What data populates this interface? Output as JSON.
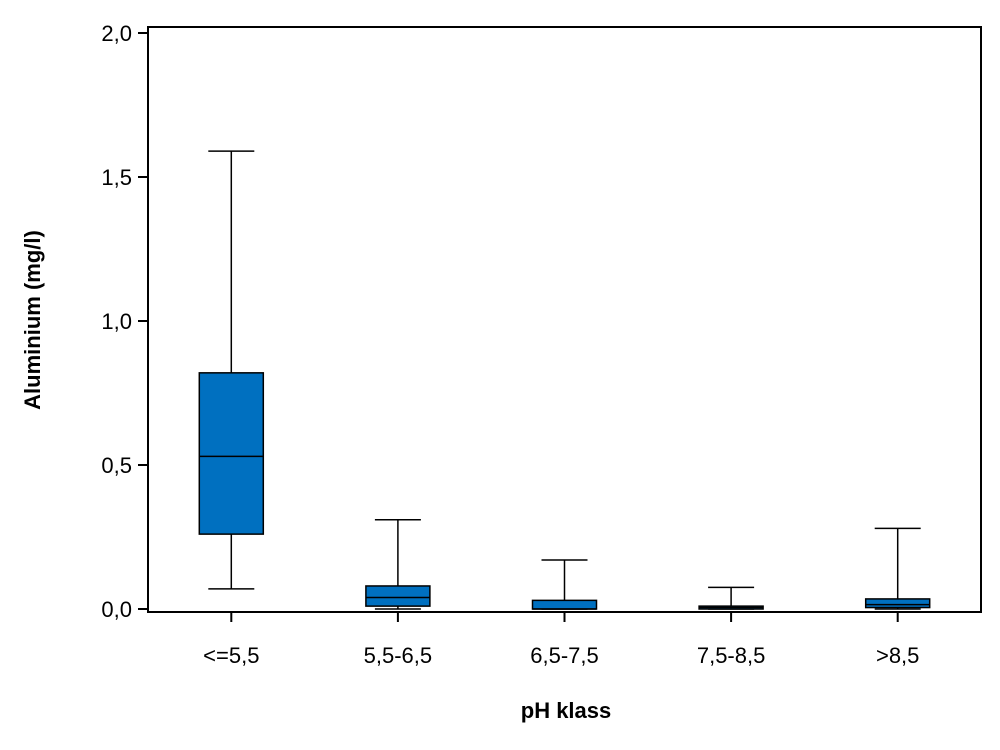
{
  "chart_data": {
    "type": "boxplot",
    "xlabel": "pH klass",
    "ylabel": "Aluminium (mg/l)",
    "ylim": [
      0,
      2.0
    ],
    "yticks": [
      "0,0",
      "0,5",
      "1,0",
      "1,5",
      "2,0"
    ],
    "ytick_values": [
      0,
      0.5,
      1.0,
      1.5,
      2.0
    ],
    "categories": [
      "<=5,5",
      "5,5-6,5",
      "6,5-7,5",
      "7,5-8,5",
      ">8,5"
    ],
    "boxes": [
      {
        "min": 0.07,
        "q1": 0.26,
        "median": 0.53,
        "q3": 0.82,
        "max": 1.59
      },
      {
        "min": 0.0,
        "q1": 0.01,
        "median": 0.04,
        "q3": 0.08,
        "max": 0.31
      },
      {
        "min": 0.0,
        "q1": 0.0,
        "median": 0.0,
        "q3": 0.03,
        "max": 0.17
      },
      {
        "min": 0.0,
        "q1": 0.0,
        "median": 0.005,
        "q3": 0.01,
        "max": 0.075
      },
      {
        "min": 0.0,
        "q1": 0.005,
        "median": 0.015,
        "q3": 0.035,
        "max": 0.28
      }
    ],
    "box_color": "#0070C0",
    "grid": false,
    "legend": "none"
  }
}
